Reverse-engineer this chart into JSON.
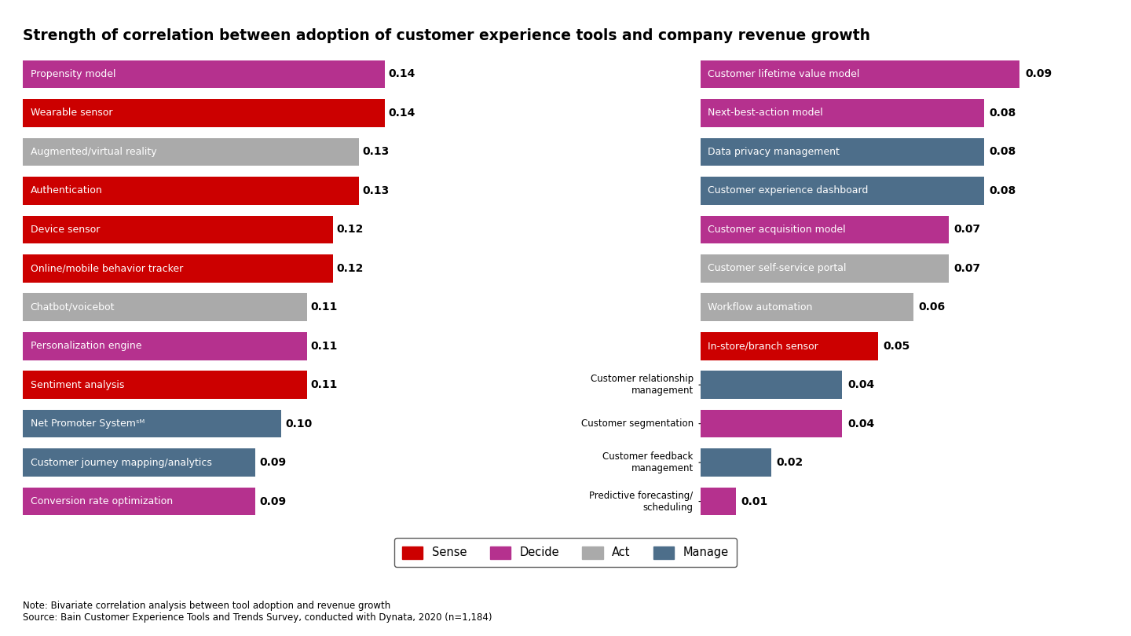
{
  "title": "Strength of correlation between adoption of customer experience tools and company revenue growth",
  "note": "Note: Bivariate correlation analysis between tool adoption and revenue growth\nSource: Bain Customer Experience Tools and Trends Survey, conducted with Dynata, 2020 (n=1,184)",
  "colors": {
    "Sense": "#cc0000",
    "Decide": "#b5318e",
    "Act": "#aaaaaa",
    "Manage": "#4d6e8a"
  },
  "left_bars": [
    {
      "label": "Propensity model",
      "value": 0.14,
      "category": "Decide"
    },
    {
      "label": "Wearable sensor",
      "value": 0.14,
      "category": "Sense"
    },
    {
      "label": "Augmented/virtual reality",
      "value": 0.13,
      "category": "Act"
    },
    {
      "label": "Authentication",
      "value": 0.13,
      "category": "Sense"
    },
    {
      "label": "Device sensor",
      "value": 0.12,
      "category": "Sense"
    },
    {
      "label": "Online/mobile behavior tracker",
      "value": 0.12,
      "category": "Sense"
    },
    {
      "label": "Chatbot/voicebot",
      "value": 0.11,
      "category": "Act"
    },
    {
      "label": "Personalization engine",
      "value": 0.11,
      "category": "Decide"
    },
    {
      "label": "Sentiment analysis",
      "value": 0.11,
      "category": "Sense"
    },
    {
      "label": "Net Promoter Systemˢᴹ",
      "value": 0.1,
      "category": "Manage"
    },
    {
      "label": "Customer journey mapping/analytics",
      "value": 0.09,
      "category": "Manage"
    },
    {
      "label": "Conversion rate optimization",
      "value": 0.09,
      "category": "Decide"
    }
  ],
  "right_bars": [
    {
      "label": "Customer lifetime value model",
      "value": 0.09,
      "category": "Decide",
      "label_inside": true
    },
    {
      "label": "Next-best-action model",
      "value": 0.08,
      "category": "Decide",
      "label_inside": true
    },
    {
      "label": "Data privacy management",
      "value": 0.08,
      "category": "Manage",
      "label_inside": true
    },
    {
      "label": "Customer experience dashboard",
      "value": 0.08,
      "category": "Manage",
      "label_inside": true
    },
    {
      "label": "Customer acquisition model",
      "value": 0.07,
      "category": "Decide",
      "label_inside": true
    },
    {
      "label": "Customer self-service portal",
      "value": 0.07,
      "category": "Act",
      "label_inside": true
    },
    {
      "label": "Workflow automation",
      "value": 0.06,
      "category": "Act",
      "label_inside": true
    },
    {
      "label": "In-store/branch sensor",
      "value": 0.05,
      "category": "Sense",
      "label_inside": true
    },
    {
      "label": "Customer relationship\nmanagement",
      "value": 0.04,
      "category": "Manage",
      "label_inside": false
    },
    {
      "label": "Customer segmentation",
      "value": 0.04,
      "category": "Decide",
      "label_inside": false
    },
    {
      "label": "Customer feedback\nmanagement",
      "value": 0.02,
      "category": "Manage",
      "label_inside": false
    },
    {
      "label": "Predictive forecasting/\nscheduling",
      "value": 0.01,
      "category": "Decide",
      "label_inside": false
    }
  ],
  "legend_order": [
    "Sense",
    "Decide",
    "Act",
    "Manage"
  ],
  "background_color": "#ffffff"
}
